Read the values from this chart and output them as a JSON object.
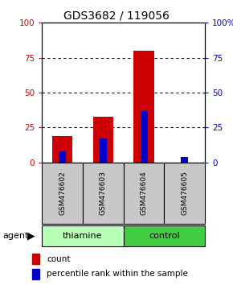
{
  "title": "GDS3682 / 119056",
  "samples": [
    "GSM476602",
    "GSM476603",
    "GSM476604",
    "GSM476605"
  ],
  "red_values": [
    19,
    33,
    80,
    0
  ],
  "blue_values": [
    8,
    17,
    37,
    4
  ],
  "red_color": "#CC0000",
  "blue_color": "#0000CC",
  "yticks": [
    0,
    25,
    50,
    75,
    100
  ],
  "left_tick_labels": [
    "0",
    "25",
    "50",
    "75",
    "100"
  ],
  "right_tick_labels": [
    "0",
    "25",
    "50",
    "75",
    "100%"
  ],
  "plot_bg": "#ffffff",
  "label_area_color": "#c8c8c8",
  "thiamine_color": "#b8ffb8",
  "control_color": "#44cc44",
  "legend_count": "count",
  "legend_pct": "percentile rank within the sample",
  "agent_label": "agent"
}
